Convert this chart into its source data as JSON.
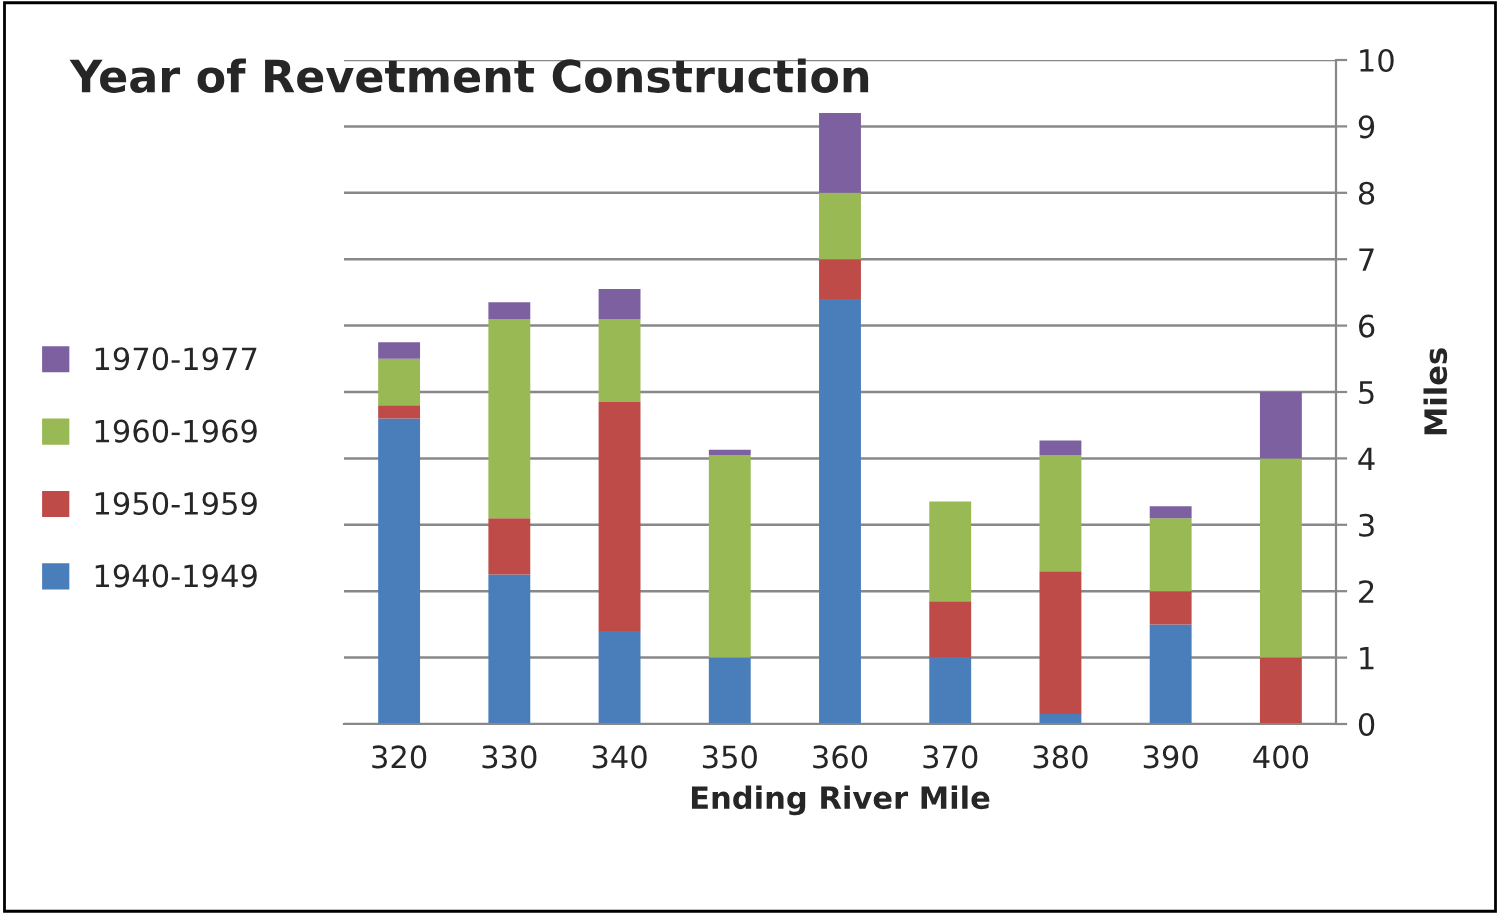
{
  "chart_data": {
    "type": "bar",
    "title": "Year of Revetment Construction",
    "xlabel": "Ending River Mile",
    "ylabel": "Miles",
    "categories": [
      "320",
      "330",
      "340",
      "350",
      "360",
      "370",
      "380",
      "390",
      "400"
    ],
    "stacked": true,
    "series": [
      {
        "name": "1940-1949",
        "color": "#4a7ebb",
        "values": [
          4.6,
          2.25,
          1.4,
          1.0,
          6.4,
          1.0,
          0.15,
          1.5,
          0
        ]
      },
      {
        "name": "1950-1959",
        "color": "#be4b48",
        "values": [
          0.2,
          0.85,
          3.45,
          0,
          0.6,
          0.85,
          2.15,
          0.5,
          1.0
        ]
      },
      {
        "name": "1960-1969",
        "color": "#98b954",
        "values": [
          0.7,
          3.0,
          1.25,
          3.05,
          1.0,
          1.5,
          1.75,
          1.1,
          3.0
        ]
      },
      {
        "name": "1970-1977",
        "color": "#7d60a0",
        "values": [
          0.25,
          0.25,
          0.45,
          0.08,
          1.2,
          0,
          0.22,
          0.18,
          1.0
        ]
      }
    ],
    "ylim": [
      0,
      10
    ],
    "yticks": [
      0,
      1,
      2,
      3,
      4,
      5,
      6,
      7,
      8,
      9,
      10
    ],
    "grid": "y",
    "legend": "left"
  }
}
